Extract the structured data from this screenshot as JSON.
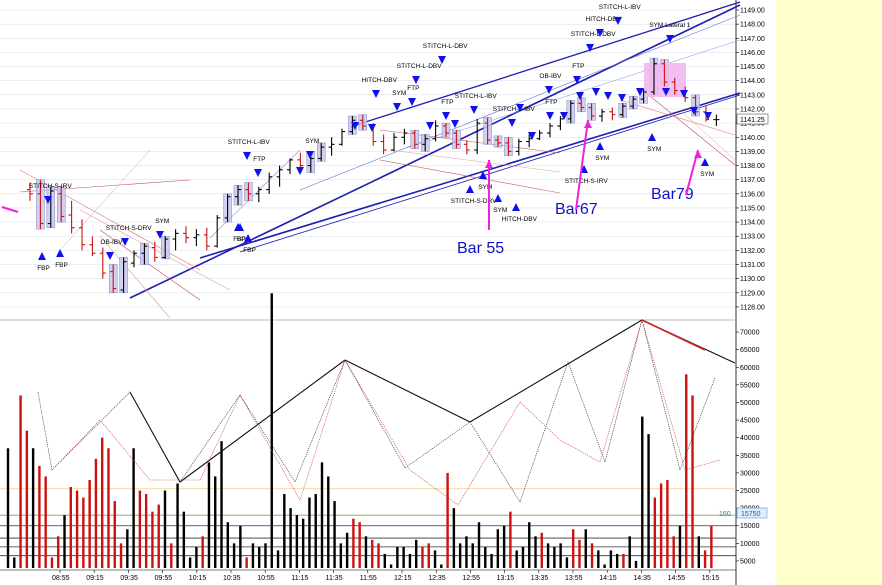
{
  "colors": {
    "up_bar": "#000000",
    "down_bar": "#cc1111",
    "channel": "#1f1fb0",
    "arrow_blue": "#1010ee",
    "magenta": "#ee22dd",
    "box_fill": "#c8c8f0",
    "pink_box": "#f0b8ee",
    "sidebar": "#ffffcc",
    "grid": "#dde3ea"
  },
  "chart_data": [
    {
      "type": "ohlc",
      "panel": "price",
      "ylim": [
        1127.5,
        1149.5
      ],
      "yticks": [
        "1149.00",
        "1148.00",
        "1147.00",
        "1146.00",
        "1145.00",
        "1144.00",
        "1143.00",
        "1142.00",
        "1141.00",
        "1140.00",
        "1139.00",
        "1138.00",
        "1137.00",
        "1136.00",
        "1135.00",
        "1134.00",
        "1133.00",
        "1132.00",
        "1131.00",
        "1130.00",
        "1129.00",
        "1128.00"
      ],
      "last_price": "1141.25",
      "bars": [
        [
          1136.3,
          1136.8,
          1135.5,
          1136.0
        ],
        [
          1136.0,
          1137.0,
          1133.5,
          1133.9
        ],
        [
          1133.9,
          1136.5,
          1133.6,
          1136.2
        ],
        [
          1136.0,
          1136.5,
          1134.0,
          1134.4
        ],
        [
          1134.5,
          1135.5,
          1133.2,
          1133.6
        ],
        [
          1133.6,
          1134.2,
          1132.0,
          1132.4
        ],
        [
          1132.4,
          1133.0,
          1131.6,
          1131.8
        ],
        [
          1131.8,
          1132.2,
          1130.0,
          1130.4
        ],
        [
          1130.5,
          1131.0,
          1129.0,
          1129.3
        ],
        [
          1129.2,
          1131.5,
          1129.0,
          1131.2
        ],
        [
          1131.1,
          1132.0,
          1130.8,
          1131.8
        ],
        [
          1131.8,
          1132.5,
          1131.0,
          1132.3
        ],
        [
          1132.2,
          1132.6,
          1131.2,
          1131.5
        ],
        [
          1131.5,
          1133.0,
          1131.4,
          1132.8
        ],
        [
          1132.8,
          1133.5,
          1132.0,
          1133.2
        ],
        [
          1133.2,
          1133.7,
          1132.5,
          1132.9
        ],
        [
          1132.9,
          1133.5,
          1132.3,
          1133.1
        ],
        [
          1133.1,
          1133.6,
          1132.0,
          1132.3
        ],
        [
          1132.3,
          1134.5,
          1132.2,
          1134.3
        ],
        [
          1134.3,
          1136.0,
          1134.0,
          1135.8
        ],
        [
          1135.8,
          1136.6,
          1135.2,
          1136.3
        ],
        [
          1136.3,
          1136.8,
          1135.5,
          1136.0
        ],
        [
          1136.0,
          1136.5,
          1135.4,
          1136.3
        ],
        [
          1136.3,
          1137.5,
          1136.0,
          1137.2
        ],
        [
          1137.2,
          1138.0,
          1136.5,
          1137.7
        ],
        [
          1137.7,
          1138.5,
          1137.4,
          1138.4
        ],
        [
          1138.4,
          1138.9,
          1137.8,
          1138.0
        ],
        [
          1138.0,
          1139.0,
          1137.5,
          1138.5
        ],
        [
          1138.5,
          1139.6,
          1138.3,
          1139.3
        ],
        [
          1139.3,
          1140.0,
          1138.7,
          1139.5
        ],
        [
          1139.5,
          1140.6,
          1139.4,
          1140.4
        ],
        [
          1140.4,
          1141.5,
          1140.2,
          1141.2
        ],
        [
          1141.2,
          1141.6,
          1140.5,
          1140.8
        ],
        [
          1140.8,
          1141.0,
          1139.4,
          1139.7
        ],
        [
          1139.7,
          1140.2,
          1138.8,
          1139.1
        ],
        [
          1139.1,
          1140.3,
          1139.0,
          1140.0
        ],
        [
          1140.0,
          1140.6,
          1139.5,
          1140.3
        ],
        [
          1140.3,
          1140.5,
          1139.2,
          1139.5
        ],
        [
          1139.5,
          1140.2,
          1139.0,
          1139.9
        ],
        [
          1139.9,
          1141.2,
          1139.7,
          1140.8
        ],
        [
          1140.8,
          1141.0,
          1140.0,
          1140.3
        ],
        [
          1140.3,
          1140.5,
          1139.2,
          1139.5
        ],
        [
          1139.5,
          1139.8,
          1138.8,
          1139.1
        ],
        [
          1139.1,
          1141.3,
          1138.8,
          1141.0
        ],
        [
          1141.0,
          1141.4,
          1139.5,
          1139.8
        ],
        [
          1139.8,
          1140.1,
          1139.3,
          1139.6
        ],
        [
          1139.6,
          1140.0,
          1138.7,
          1139.0
        ],
        [
          1139.0,
          1139.9,
          1138.7,
          1139.7
        ],
        [
          1139.7,
          1140.2,
          1139.3,
          1139.9
        ],
        [
          1139.9,
          1140.5,
          1139.8,
          1140.3
        ],
        [
          1140.3,
          1141.0,
          1140.0,
          1140.8
        ],
        [
          1140.8,
          1141.5,
          1140.5,
          1141.3
        ],
        [
          1141.3,
          1142.6,
          1141.0,
          1142.4
        ],
        [
          1142.4,
          1142.8,
          1141.8,
          1142.1
        ],
        [
          1142.1,
          1142.4,
          1141.2,
          1141.5
        ],
        [
          1141.5,
          1142.0,
          1141.1,
          1141.8
        ],
        [
          1141.8,
          1142.1,
          1141.2,
          1141.6
        ],
        [
          1141.6,
          1142.4,
          1141.4,
          1142.2
        ],
        [
          1142.2,
          1142.9,
          1142.0,
          1142.7
        ],
        [
          1142.7,
          1143.4,
          1142.4,
          1143.2
        ],
        [
          1143.2,
          1145.6,
          1143.0,
          1145.2
        ],
        [
          1145.2,
          1145.5,
          1143.6,
          1143.9
        ],
        [
          1143.9,
          1144.2,
          1143.0,
          1143.3
        ],
        [
          1143.3,
          1143.6,
          1142.5,
          1142.8
        ],
        [
          1142.8,
          1143.0,
          1141.5,
          1141.8
        ],
        [
          1141.8,
          1142.2,
          1141.1,
          1141.25
        ],
        [
          1141.25,
          1141.6,
          1140.8,
          1141.25
        ]
      ]
    },
    {
      "type": "bar",
      "panel": "volume",
      "ylim": [
        3000,
        72000
      ],
      "yticks": [
        "70000",
        "65000",
        "60000",
        "55000",
        "50000",
        "45000",
        "40000",
        "35000",
        "30000",
        "25000",
        "20000",
        "15000",
        "10000",
        "5000"
      ],
      "volume_label": "15750",
      "volume_tag": "160",
      "xticks": [
        "08:55",
        "09:15",
        "09:35",
        "09:55",
        "10:15",
        "10:35",
        "10:55",
        "11:15",
        "11:35",
        "11:55",
        "12:15",
        "12:35",
        "12:55",
        "13:15",
        "13:35",
        "13:55",
        "14:15",
        "14:35",
        "14:55",
        "15:15"
      ],
      "values": [
        [
          37000,
          0
        ],
        [
          6000,
          0
        ],
        [
          52000,
          1
        ],
        [
          42000,
          1
        ],
        [
          37000,
          0
        ],
        [
          32000,
          1
        ],
        [
          29000,
          1
        ],
        [
          6000,
          1
        ],
        [
          12000,
          1
        ],
        [
          18000,
          0
        ],
        [
          26000,
          1
        ],
        [
          25000,
          1
        ],
        [
          23000,
          1
        ],
        [
          28000,
          1
        ],
        [
          34000,
          1
        ],
        [
          40000,
          1
        ],
        [
          37000,
          1
        ],
        [
          22000,
          1
        ],
        [
          10000,
          1
        ],
        [
          14000,
          0
        ],
        [
          37000,
          0
        ],
        [
          25000,
          1
        ],
        [
          24000,
          1
        ],
        [
          19000,
          1
        ],
        [
          21000,
          1
        ],
        [
          25000,
          0
        ],
        [
          10000,
          1
        ],
        [
          27000,
          0
        ],
        [
          19000,
          0
        ],
        [
          6000,
          0
        ],
        [
          9000,
          0
        ],
        [
          12000,
          1
        ],
        [
          33000,
          0
        ],
        [
          29000,
          0
        ],
        [
          39000,
          0
        ],
        [
          16000,
          0
        ],
        [
          10000,
          0
        ],
        [
          15000,
          0
        ],
        [
          6000,
          1
        ],
        [
          10000,
          0
        ],
        [
          9000,
          0
        ],
        [
          10000,
          0
        ],
        [
          81000,
          0
        ],
        [
          8000,
          0
        ],
        [
          24000,
          0
        ],
        [
          20000,
          0
        ],
        [
          18000,
          0
        ],
        [
          17000,
          0
        ],
        [
          23000,
          0
        ],
        [
          24000,
          0
        ],
        [
          33000,
          0
        ],
        [
          29000,
          0
        ],
        [
          22000,
          0
        ],
        [
          10000,
          0
        ],
        [
          13000,
          0
        ],
        [
          17000,
          1
        ],
        [
          16000,
          1
        ],
        [
          12000,
          0
        ],
        [
          11000,
          1
        ],
        [
          10000,
          1
        ],
        [
          7000,
          0
        ],
        [
          4000,
          0
        ],
        [
          9000,
          0
        ],
        [
          9000,
          0
        ],
        [
          7000,
          0
        ],
        [
          11000,
          0
        ],
        [
          9000,
          1
        ],
        [
          10000,
          1
        ],
        [
          8000,
          0
        ],
        [
          4000,
          0
        ],
        [
          30000,
          1
        ],
        [
          20000,
          0
        ],
        [
          10000,
          0
        ],
        [
          12000,
          0
        ],
        [
          10000,
          0
        ],
        [
          16000,
          0
        ],
        [
          9000,
          0
        ],
        [
          7000,
          0
        ],
        [
          14000,
          0
        ],
        [
          15000,
          0
        ],
        [
          19000,
          1
        ],
        [
          8000,
          0
        ],
        [
          9000,
          0
        ],
        [
          16000,
          0
        ],
        [
          12000,
          0
        ],
        [
          13000,
          1
        ],
        [
          10000,
          0
        ],
        [
          9000,
          0
        ],
        [
          10000,
          0
        ],
        [
          6000,
          0
        ],
        [
          14000,
          1
        ],
        [
          11000,
          1
        ],
        [
          14000,
          0
        ],
        [
          10000,
          1
        ],
        [
          8000,
          0
        ],
        [
          4000,
          0
        ],
        [
          8000,
          0
        ],
        [
          7000,
          0
        ],
        [
          7000,
          1
        ],
        [
          12000,
          0
        ],
        [
          5000,
          0
        ],
        [
          46000,
          0
        ],
        [
          41000,
          0
        ],
        [
          23000,
          1
        ],
        [
          27000,
          1
        ],
        [
          28000,
          1
        ],
        [
          12000,
          1
        ],
        [
          15000,
          0
        ],
        [
          58000,
          1
        ],
        [
          52000,
          1
        ],
        [
          12000,
          0
        ],
        [
          8000,
          1
        ],
        [
          15000,
          1
        ]
      ]
    }
  ],
  "signals": [
    {
      "text": "STITCH-S-IRV"
    },
    {
      "text": "FBP"
    },
    {
      "text": "FBP"
    },
    {
      "text": "OB-IBV"
    },
    {
      "text": "STITCH-S-DRV"
    },
    {
      "text": "SYM"
    },
    {
      "text": "FBP"
    },
    {
      "text": "BP"
    },
    {
      "text": "FBP"
    },
    {
      "text": "FTP"
    },
    {
      "text": "STITCH-L-IBV"
    },
    {
      "text": "SYM"
    },
    {
      "text": "SYM"
    },
    {
      "text": "HITCH-DBV"
    },
    {
      "text": "STITCH-L-DBV"
    },
    {
      "text": "STITCH-L-DBV"
    },
    {
      "text": "FTP"
    },
    {
      "text": "FTP"
    },
    {
      "text": "STITCH-L-IBV"
    },
    {
      "text": "STITCH-L-IBV"
    },
    {
      "text": "SYM"
    },
    {
      "text": "STITCH-S-DRV"
    },
    {
      "text": "SYM"
    },
    {
      "text": "HITCH-DBV"
    },
    {
      "text": "OB-IBV"
    },
    {
      "text": "FTP"
    },
    {
      "text": "FTP"
    },
    {
      "text": "STITCH-S-IRV"
    },
    {
      "text": "SYM"
    },
    {
      "text": "STITCH-L-DBV"
    },
    {
      "text": "HITCH-DBV"
    },
    {
      "text": "STITCH-L-IBV"
    },
    {
      "text": "SYM Lateral 1"
    },
    {
      "text": "SYM"
    },
    {
      "text": "SYM"
    }
  ],
  "annotations": {
    "bar55": "Bar 55",
    "bar67": "Bar67",
    "bar79": "Bar79"
  }
}
